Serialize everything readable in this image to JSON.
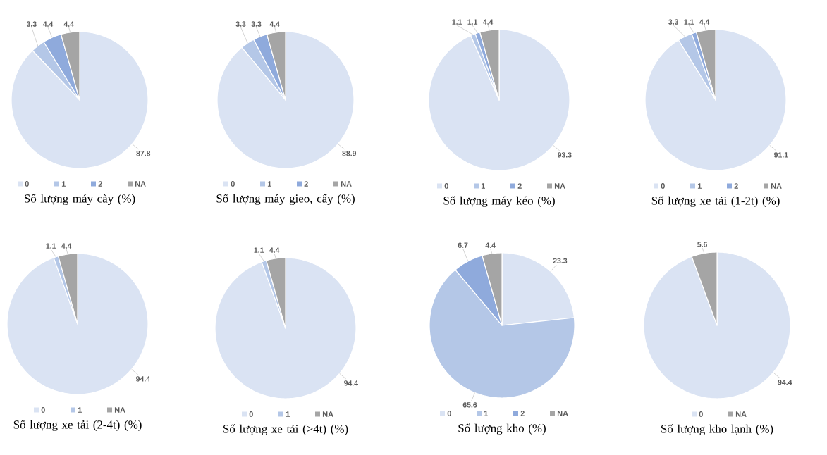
{
  "chart_data": [
    {
      "type": "pie",
      "title": "Số lượng máy cày (%)",
      "categories": [
        "0",
        "1",
        "2",
        "NA"
      ],
      "values": [
        87.8,
        3.3,
        4.4,
        4.4
      ],
      "colors": [
        "#dae3f3",
        "#b4c7e7",
        "#8faadc",
        "#a5a5a5"
      ],
      "data_labels": true,
      "legend": "bottom"
    },
    {
      "type": "pie",
      "title": "Số lượng máy gieo, cấy (%)",
      "categories": [
        "0",
        "1",
        "2",
        "NA"
      ],
      "values": [
        88.9,
        3.3,
        3.3,
        4.4
      ],
      "colors": [
        "#dae3f3",
        "#b4c7e7",
        "#8faadc",
        "#a5a5a5"
      ],
      "data_labels": true,
      "legend": "bottom"
    },
    {
      "type": "pie",
      "title": "Số lượng máy kéo (%)",
      "categories": [
        "0",
        "1",
        "2",
        "NA"
      ],
      "values": [
        93.3,
        1.1,
        1.1,
        4.4
      ],
      "colors": [
        "#dae3f3",
        "#b4c7e7",
        "#8faadc",
        "#a5a5a5"
      ],
      "data_labels": true,
      "legend": "bottom"
    },
    {
      "type": "pie",
      "title": "Số lượng xe tải (1-2t) (%)",
      "categories": [
        "0",
        "1",
        "2",
        "NA"
      ],
      "values": [
        91.1,
        3.3,
        1.1,
        4.4
      ],
      "colors": [
        "#dae3f3",
        "#b4c7e7",
        "#8faadc",
        "#a5a5a5"
      ],
      "data_labels": true,
      "legend": "bottom"
    },
    {
      "type": "pie",
      "title": "Số lượng xe tải (2-4t) (%)",
      "categories": [
        "0",
        "1",
        "NA"
      ],
      "values": [
        94.4,
        1.1,
        4.4
      ],
      "colors": [
        "#dae3f3",
        "#b4c7e7",
        "#a5a5a5"
      ],
      "data_labels": true,
      "legend": "bottom"
    },
    {
      "type": "pie",
      "title": "Số lượng xe tải (>4t) (%)",
      "categories": [
        "0",
        "1",
        "NA"
      ],
      "values": [
        94.4,
        1.1,
        4.4
      ],
      "colors": [
        "#dae3f3",
        "#b4c7e7",
        "#a5a5a5"
      ],
      "data_labels": true,
      "legend": "bottom"
    },
    {
      "type": "pie",
      "title": "Số lượng kho (%)",
      "categories": [
        "0",
        "1",
        "2",
        "NA"
      ],
      "values": [
        23.3,
        65.6,
        6.7,
        4.4
      ],
      "colors": [
        "#dae3f3",
        "#b4c7e7",
        "#8faadc",
        "#a5a5a5"
      ],
      "data_labels": true,
      "legend": "bottom"
    },
    {
      "type": "pie",
      "title": "Số lượng kho lạnh (%)",
      "categories": [
        "0",
        "NA"
      ],
      "values": [
        94.4,
        5.6
      ],
      "colors": [
        "#dae3f3",
        "#a5a5a5"
      ],
      "data_labels": true,
      "legend": "bottom"
    }
  ]
}
